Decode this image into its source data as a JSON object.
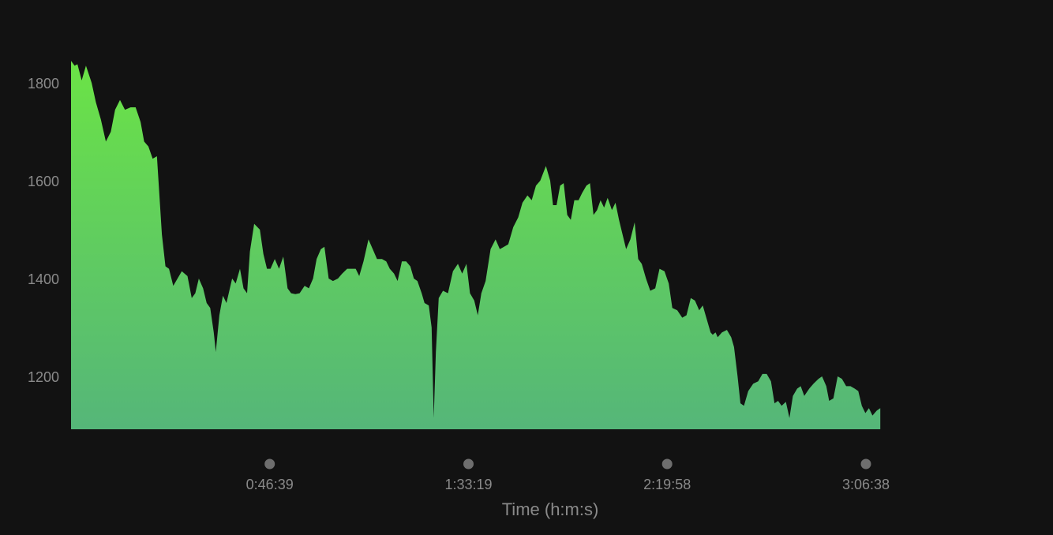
{
  "chart_data": {
    "type": "area",
    "title": "",
    "xlabel": "Time (h:m:s)",
    "ylabel": "",
    "x_unit": "seconds",
    "xlim": [
      0,
      13500
    ],
    "ylim": [
      1100,
      1850
    ],
    "yticks": [
      {
        "value": 1200,
        "label": "1200"
      },
      {
        "value": 1400,
        "label": "1400"
      },
      {
        "value": 1600,
        "label": "1600"
      },
      {
        "value": 1800,
        "label": "1800"
      }
    ],
    "xticks": [
      {
        "value": 2799,
        "label": "0:46:39"
      },
      {
        "value": 5599,
        "label": "1:33:19"
      },
      {
        "value": 8398,
        "label": "2:19:58"
      },
      {
        "value": 11198,
        "label": "3:06:38"
      }
    ],
    "grid": false,
    "legend": "none",
    "colors": {
      "background": "#121212",
      "fill_top": "#6be346",
      "fill_bottom": "#55b679",
      "text": "#8a8a8a",
      "tick_dot": "#6e6e6e"
    },
    "series": [
      {
        "values": [
          [
            0,
            1845
          ],
          [
            50,
            1835
          ],
          [
            90,
            1838
          ],
          [
            150,
            1805
          ],
          [
            210,
            1835
          ],
          [
            290,
            1800
          ],
          [
            350,
            1760
          ],
          [
            420,
            1725
          ],
          [
            490,
            1680
          ],
          [
            560,
            1700
          ],
          [
            620,
            1745
          ],
          [
            690,
            1765
          ],
          [
            760,
            1745
          ],
          [
            840,
            1750
          ],
          [
            910,
            1750
          ],
          [
            980,
            1720
          ],
          [
            1030,
            1680
          ],
          [
            1090,
            1670
          ],
          [
            1150,
            1645
          ],
          [
            1210,
            1650
          ],
          [
            1280,
            1490
          ],
          [
            1330,
            1425
          ],
          [
            1380,
            1420
          ],
          [
            1440,
            1385
          ],
          [
            1500,
            1400
          ],
          [
            1560,
            1415
          ],
          [
            1640,
            1405
          ],
          [
            1700,
            1360
          ],
          [
            1750,
            1370
          ],
          [
            1800,
            1400
          ],
          [
            1860,
            1380
          ],
          [
            1910,
            1350
          ],
          [
            1960,
            1340
          ],
          [
            2010,
            1290
          ],
          [
            2040,
            1250
          ],
          [
            2090,
            1325
          ],
          [
            2140,
            1365
          ],
          [
            2190,
            1350
          ],
          [
            2270,
            1400
          ],
          [
            2320,
            1390
          ],
          [
            2380,
            1420
          ],
          [
            2430,
            1380
          ],
          [
            2480,
            1370
          ],
          [
            2520,
            1455
          ],
          [
            2580,
            1512
          ],
          [
            2660,
            1500
          ],
          [
            2710,
            1450
          ],
          [
            2760,
            1420
          ],
          [
            2810,
            1420
          ],
          [
            2870,
            1440
          ],
          [
            2930,
            1420
          ],
          [
            2990,
            1445
          ],
          [
            3050,
            1380
          ],
          [
            3100,
            1370
          ],
          [
            3160,
            1368
          ],
          [
            3220,
            1370
          ],
          [
            3290,
            1385
          ],
          [
            3350,
            1380
          ],
          [
            3410,
            1400
          ],
          [
            3460,
            1440
          ],
          [
            3520,
            1460
          ],
          [
            3570,
            1465
          ],
          [
            3630,
            1400
          ],
          [
            3690,
            1395
          ],
          [
            3760,
            1400
          ],
          [
            3820,
            1410
          ],
          [
            3890,
            1420
          ],
          [
            3950,
            1420
          ],
          [
            4010,
            1420
          ],
          [
            4060,
            1405
          ],
          [
            4120,
            1435
          ],
          [
            4190,
            1480
          ],
          [
            4250,
            1460
          ],
          [
            4310,
            1440
          ],
          [
            4380,
            1440
          ],
          [
            4440,
            1435
          ],
          [
            4490,
            1420
          ],
          [
            4550,
            1410
          ],
          [
            4600,
            1395
          ],
          [
            4660,
            1435
          ],
          [
            4720,
            1435
          ],
          [
            4780,
            1425
          ],
          [
            4830,
            1400
          ],
          [
            4880,
            1395
          ],
          [
            4940,
            1370
          ],
          [
            4980,
            1350
          ],
          [
            5040,
            1345
          ],
          [
            5080,
            1300
          ],
          [
            5110,
            1115
          ],
          [
            5140,
            1250
          ],
          [
            5180,
            1360
          ],
          [
            5240,
            1375
          ],
          [
            5310,
            1370
          ],
          [
            5380,
            1415
          ],
          [
            5450,
            1430
          ],
          [
            5510,
            1410
          ],
          [
            5570,
            1430
          ],
          [
            5620,
            1370
          ],
          [
            5680,
            1355
          ],
          [
            5730,
            1325
          ],
          [
            5780,
            1370
          ],
          [
            5840,
            1395
          ],
          [
            5910,
            1460
          ],
          [
            5980,
            1480
          ],
          [
            6040,
            1460
          ],
          [
            6100,
            1465
          ],
          [
            6160,
            1470
          ],
          [
            6230,
            1505
          ],
          [
            6300,
            1525
          ],
          [
            6360,
            1555
          ],
          [
            6430,
            1570
          ],
          [
            6490,
            1560
          ],
          [
            6550,
            1590
          ],
          [
            6610,
            1600
          ],
          [
            6690,
            1630
          ],
          [
            6750,
            1600
          ],
          [
            6790,
            1550
          ],
          [
            6840,
            1550
          ],
          [
            6890,
            1590
          ],
          [
            6940,
            1595
          ],
          [
            6990,
            1530
          ],
          [
            7040,
            1520
          ],
          [
            7090,
            1560
          ],
          [
            7150,
            1560
          ],
          [
            7200,
            1575
          ],
          [
            7260,
            1590
          ],
          [
            7310,
            1595
          ],
          [
            7360,
            1530
          ],
          [
            7410,
            1540
          ],
          [
            7460,
            1560
          ],
          [
            7510,
            1545
          ],
          [
            7560,
            1565
          ],
          [
            7620,
            1540
          ],
          [
            7670,
            1555
          ],
          [
            7720,
            1520
          ],
          [
            7770,
            1490
          ],
          [
            7820,
            1460
          ],
          [
            7880,
            1480
          ],
          [
            7940,
            1515
          ],
          [
            7990,
            1440
          ],
          [
            8040,
            1430
          ],
          [
            8100,
            1400
          ],
          [
            8160,
            1375
          ],
          [
            8230,
            1380
          ],
          [
            8290,
            1420
          ],
          [
            8360,
            1415
          ],
          [
            8420,
            1390
          ],
          [
            8470,
            1340
          ],
          [
            8540,
            1335
          ],
          [
            8610,
            1320
          ],
          [
            8670,
            1325
          ],
          [
            8730,
            1360
          ],
          [
            8790,
            1355
          ],
          [
            8850,
            1335
          ],
          [
            8900,
            1345
          ],
          [
            8960,
            1315
          ],
          [
            9010,
            1290
          ],
          [
            9040,
            1285
          ],
          [
            9080,
            1290
          ],
          [
            9110,
            1280
          ],
          [
            9170,
            1290
          ],
          [
            9240,
            1295
          ],
          [
            9300,
            1280
          ],
          [
            9340,
            1260
          ],
          [
            9390,
            1200
          ],
          [
            9430,
            1145
          ],
          [
            9480,
            1140
          ],
          [
            9540,
            1170
          ],
          [
            9610,
            1185
          ],
          [
            9680,
            1190
          ],
          [
            9740,
            1205
          ],
          [
            9800,
            1205
          ],
          [
            9860,
            1190
          ],
          [
            9910,
            1145
          ],
          [
            9960,
            1150
          ],
          [
            10010,
            1140
          ],
          [
            10070,
            1148
          ],
          [
            10120,
            1115
          ],
          [
            10170,
            1160
          ],
          [
            10230,
            1175
          ],
          [
            10280,
            1180
          ],
          [
            10330,
            1160
          ],
          [
            10400,
            1175
          ],
          [
            10460,
            1185
          ],
          [
            10530,
            1195
          ],
          [
            10580,
            1200
          ],
          [
            10640,
            1180
          ],
          [
            10680,
            1150
          ],
          [
            10740,
            1155
          ],
          [
            10800,
            1200
          ],
          [
            10860,
            1195
          ],
          [
            10920,
            1180
          ],
          [
            10980,
            1180
          ],
          [
            11040,
            1175
          ],
          [
            11090,
            1170
          ],
          [
            11140,
            1140
          ],
          [
            11190,
            1125
          ],
          [
            11240,
            1135
          ],
          [
            11290,
            1120
          ],
          [
            11350,
            1130
          ],
          [
            11400,
            1135
          ]
        ]
      }
    ]
  }
}
